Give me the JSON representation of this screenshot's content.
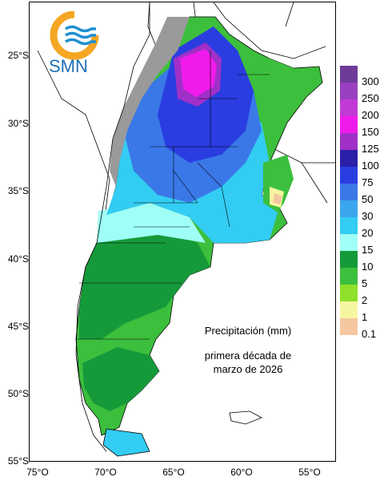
{
  "logo": {
    "text": "SMN",
    "ring_color": "#f5a623",
    "wave_color": "#1f8fd1",
    "text_color": "#1f6fb3"
  },
  "title": "Precipitación (mm)",
  "subtitle_line1": "primera década de",
  "subtitle_line2": "marzo de 2026",
  "latitude_labels": [
    "25°S",
    "30°S",
    "35°S",
    "40°S",
    "45°S",
    "50°S",
    "55°S"
  ],
  "longitude_labels": [
    "75°O",
    "70°O",
    "65°O",
    "60°O",
    "55°O"
  ],
  "legend": [
    {
      "label": "300",
      "color": "#6e3a9a"
    },
    {
      "label": "250",
      "color": "#9a3fc0"
    },
    {
      "label": "200",
      "color": "#c23ad6"
    },
    {
      "label": "150",
      "color": "#f01bea"
    },
    {
      "label": "125",
      "color": "#a030c8"
    },
    {
      "label": "100",
      "color": "#2a1fa8"
    },
    {
      "label": "75",
      "color": "#2a3de0"
    },
    {
      "label": "50",
      "color": "#3a78e8"
    },
    {
      "label": "30",
      "color": "#3aa6ee"
    },
    {
      "label": "20",
      "color": "#33ccf2"
    },
    {
      "label": "15",
      "color": "#9ffff6"
    },
    {
      "label": "10",
      "color": "#159a3a"
    },
    {
      "label": "5",
      "color": "#3cbf3c"
    },
    {
      "label": "2",
      "color": "#8fe02a"
    },
    {
      "label": "1",
      "color": "#f6f6a0"
    },
    {
      "label": "0.1",
      "color": "#f5c7a0"
    }
  ]
}
